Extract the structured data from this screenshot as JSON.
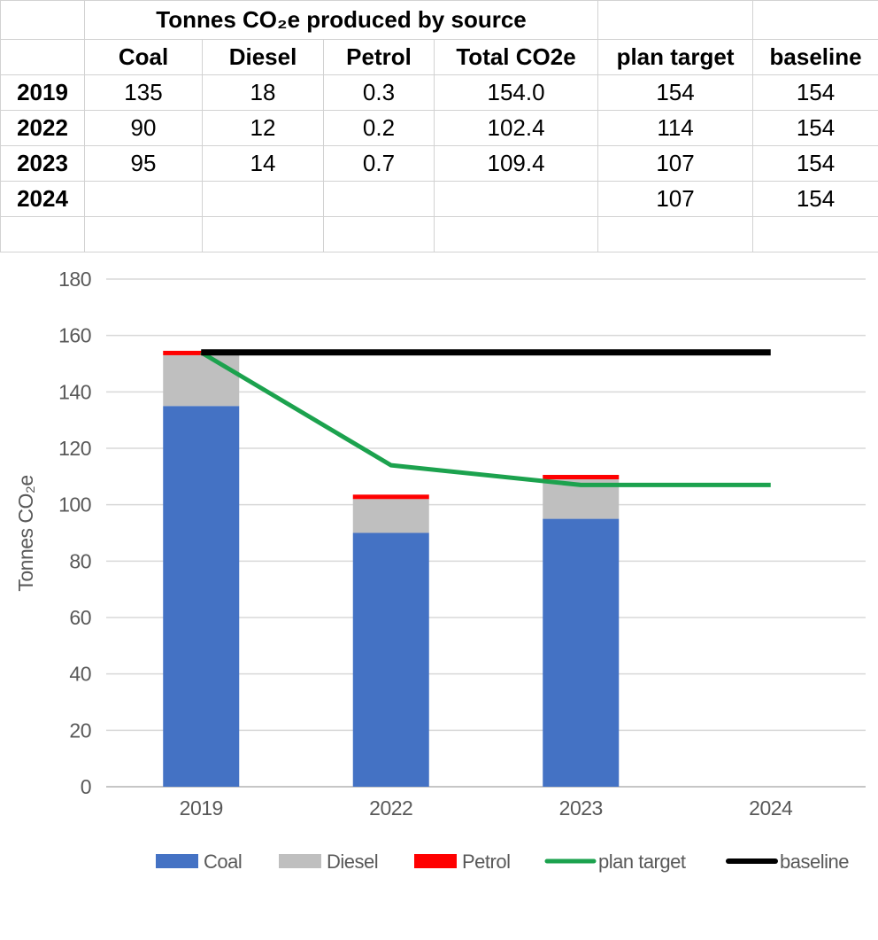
{
  "table": {
    "title": "Tonnes CO₂e produced by source",
    "columns": [
      "",
      "Coal",
      "Diesel",
      "Petrol",
      "Total CO2e",
      "plan target",
      "baseline"
    ],
    "rows": [
      {
        "year": "2019",
        "values": [
          "135",
          "18",
          "0.3",
          "154.0",
          "154",
          "154"
        ]
      },
      {
        "year": "2022",
        "values": [
          "90",
          "12",
          "0.2",
          "102.4",
          "114",
          "154"
        ]
      },
      {
        "year": "2023",
        "values": [
          "95",
          "14",
          "0.7",
          "109.4",
          "107",
          "154"
        ]
      },
      {
        "year": "2024",
        "values": [
          "",
          "",
          "",
          "",
          "107",
          "154"
        ]
      },
      {
        "year": "",
        "values": [
          "",
          "",
          "",
          "",
          "",
          ""
        ]
      }
    ]
  },
  "chart_data": {
    "type": "bar",
    "bar_mode": "stacked",
    "categories": [
      "2019",
      "2022",
      "2023",
      "2024"
    ],
    "series": [
      {
        "name": "Coal",
        "kind": "bar",
        "color": "#4472C4",
        "values": [
          135,
          90,
          95,
          null
        ]
      },
      {
        "name": "Diesel",
        "kind": "bar",
        "color": "#BFBFBF",
        "values": [
          18,
          12,
          14,
          null
        ]
      },
      {
        "name": "Petrol",
        "kind": "bar",
        "color": "#FF0000",
        "values": [
          0.3,
          0.2,
          0.7,
          null
        ]
      },
      {
        "name": "plan target",
        "kind": "line",
        "color": "#1CA24E",
        "values": [
          154,
          114,
          107,
          107
        ]
      },
      {
        "name": "baseline",
        "kind": "line",
        "color": "#000000",
        "values": [
          154,
          154,
          154,
          154
        ]
      }
    ],
    "title": "",
    "xlabel": "",
    "ylabel": "Tonnes CO₂e",
    "ylim": [
      0,
      180
    ],
    "ytick_step": 20,
    "ytick_labels": [
      "0",
      "20",
      "40",
      "60",
      "80",
      "100",
      "120",
      "140",
      "160",
      "180"
    ],
    "grid": true,
    "legend_position": "bottom",
    "text_color": "#595959",
    "gridline_color": "#D9D9D9"
  }
}
